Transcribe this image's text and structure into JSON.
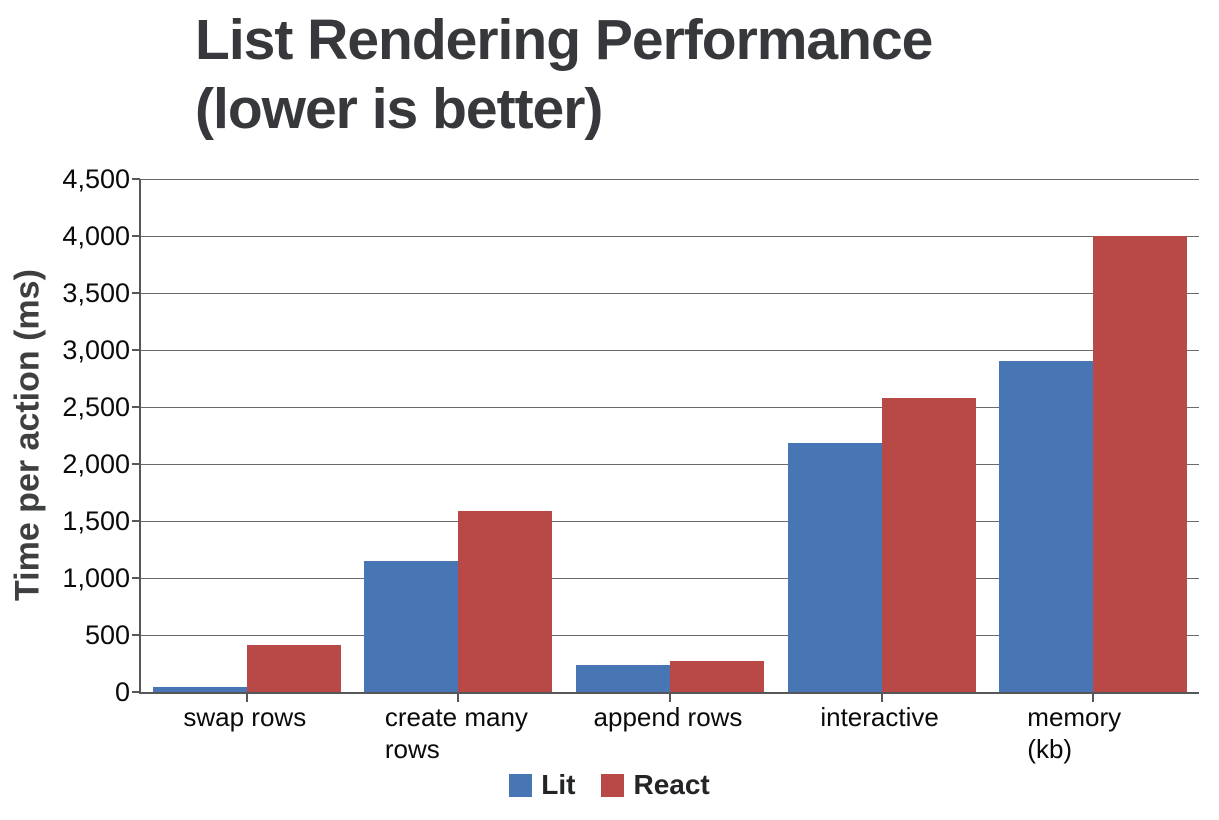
{
  "page": {
    "background": "#ffffff"
  },
  "chart_data": {
    "type": "bar",
    "title": "List Rendering Performance (lower is better)",
    "title_lines": [
      "List Rendering Performance",
      "(lower is better)"
    ],
    "ylabel": "Time per action (ms)",
    "xlabel": "",
    "categories": [
      "swap rows",
      "create many rows",
      "append rows",
      "interactive",
      "memory (kb)"
    ],
    "xtick_display": [
      "swap rows",
      "create many\nrows",
      "append rows",
      "interactive",
      "memory (kb)"
    ],
    "series": [
      {
        "name": "Lit",
        "color": "#4876B4",
        "values": [
          45,
          1150,
          240,
          2180,
          2900
        ]
      },
      {
        "name": "React",
        "color": "#B84946",
        "values": [
          415,
          1590,
          275,
          2580,
          4000
        ]
      }
    ],
    "ylim": [
      0,
      4500
    ],
    "ytick_step": 500,
    "yticks": [
      0,
      500,
      1000,
      1500,
      2000,
      2500,
      3000,
      3500,
      4000,
      4500
    ],
    "ytick_labels": [
      "0",
      "500",
      "1,000",
      "1,500",
      "2,000",
      "2,500",
      "3,000",
      "3,500",
      "4,000",
      "4,500"
    ],
    "grid": "horizontal",
    "legend_position": "bottom",
    "colors": {
      "grid": "#6a6a6a",
      "axis": "#56575a",
      "title": "#36383b",
      "tick_text": "#0a0a0a"
    }
  }
}
